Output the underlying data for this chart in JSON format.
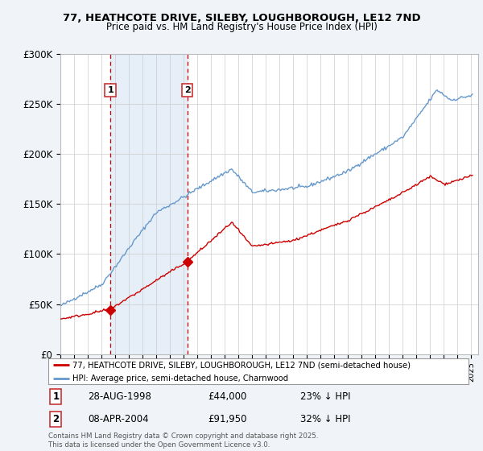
{
  "title1": "77, HEATHCOTE DRIVE, SILEBY, LOUGHBOROUGH, LE12 7ND",
  "title2": "Price paid vs. HM Land Registry's House Price Index (HPI)",
  "legend_label_red": "77, HEATHCOTE DRIVE, SILEBY, LOUGHBOROUGH, LE12 7ND (semi-detached house)",
  "legend_label_blue": "HPI: Average price, semi-detached house, Charnwood",
  "footnote": "Contains HM Land Registry data © Crown copyright and database right 2025.\nThis data is licensed under the Open Government Licence v3.0.",
  "sale1_date": "28-AUG-1998",
  "sale1_price": 44000,
  "sale1_hpi_diff": "23% ↓ HPI",
  "sale1_year": 1998.65,
  "sale2_date": "08-APR-2004",
  "sale2_price": 91950,
  "sale2_hpi_diff": "32% ↓ HPI",
  "sale2_year": 2004.27,
  "ylim": [
    0,
    300000
  ],
  "xlim_start": 1995,
  "xlim_end": 2025.5,
  "yticks": [
    0,
    50000,
    100000,
    150000,
    200000,
    250000,
    300000
  ],
  "ytick_labels": [
    "£0",
    "£50K",
    "£100K",
    "£150K",
    "£200K",
    "£250K",
    "£300K"
  ],
  "bg_color": "#f0f4f8",
  "plot_bg_color": "#ffffff",
  "shade_color": "#dce8f5",
  "red_line_color": "#cc0000",
  "blue_line_color": "#6699cc",
  "dashed_color": "#cc0000",
  "marker_color": "#cc0000",
  "box_color": "#cc3333"
}
